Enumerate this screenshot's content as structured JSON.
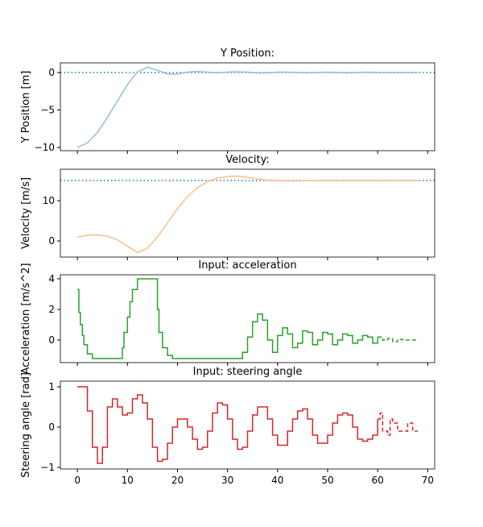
{
  "chart_data": [
    {
      "type": "line",
      "title": "Y Position:",
      "ylabel": "Y Position [m]",
      "xlim": [
        -3.4,
        71.4
      ],
      "ylim": [
        -10.43,
        1.29
      ],
      "xticks": [
        0,
        10,
        20,
        30,
        40,
        50,
        60,
        70
      ],
      "xtick_labels": false,
      "yticks": [
        {
          "value": -10,
          "label": "−10"
        },
        {
          "value": -5,
          "label": "−5"
        },
        0
      ],
      "hline": 0,
      "hline_color": "#1f77b4",
      "step": false,
      "series": [
        {
          "color": "#8fbfdb",
          "x": [
            0,
            2,
            4,
            6,
            8,
            10,
            12,
            14,
            16,
            18,
            20,
            22,
            24,
            26,
            28,
            30,
            32,
            34,
            36,
            38,
            40,
            42,
            44,
            46,
            48,
            50,
            52,
            54,
            56,
            58,
            60,
            62,
            64,
            66,
            68
          ],
          "values": [
            -10,
            -9.4,
            -8,
            -6,
            -3.8,
            -1.6,
            0.1,
            0.7,
            0.3,
            -0.2,
            -0.2,
            0.05,
            0.15,
            0.05,
            -0.05,
            0.05,
            0.1,
            0.05,
            -0.05,
            -0.05,
            0.05,
            0.05,
            0,
            -0.05,
            0,
            0.05,
            0,
            -0.05,
            0,
            0.05,
            0,
            0,
            0,
            0,
            0
          ]
        }
      ]
    },
    {
      "type": "line",
      "title": "Velocity:",
      "ylabel": "Velocity [m/s]",
      "xlim": [
        -3.4,
        71.4
      ],
      "ylim": [
        -4.0,
        17.8
      ],
      "xticks": [
        0,
        10,
        20,
        30,
        40,
        50,
        60,
        70
      ],
      "xtick_labels": false,
      "yticks": [
        0,
        10
      ],
      "hline": 15,
      "hline_color": "#1f77b4",
      "step": false,
      "series": [
        {
          "color": "#f9c18d",
          "x": [
            0,
            2,
            4,
            6,
            8,
            10,
            12,
            14,
            16,
            18,
            20,
            22,
            24,
            26,
            28,
            30,
            32,
            34,
            36,
            38,
            40,
            42,
            44,
            46,
            48,
            50,
            52,
            54,
            56,
            58,
            60,
            62,
            64,
            66,
            68
          ],
          "values": [
            1,
            1.4,
            1.5,
            1.2,
            0.3,
            -1.3,
            -2.9,
            -1.8,
            1,
            4.5,
            8,
            11,
            13.2,
            14.7,
            15.6,
            16,
            16.1,
            15.8,
            15.4,
            15.1,
            15,
            14.9,
            14.9,
            15,
            15,
            15,
            15,
            15,
            15,
            15,
            15,
            15,
            15,
            15,
            15
          ]
        }
      ]
    },
    {
      "type": "line",
      "title": "Input: acceleration",
      "ylabel": "Acceleration [m/s^2]",
      "xlim": [
        -3.4,
        71.4
      ],
      "ylim": [
        -1.47,
        4.26
      ],
      "xticks": [
        0,
        10,
        20,
        30,
        40,
        50,
        60,
        70
      ],
      "xtick_labels": false,
      "yticks": [
        0,
        2,
        4
      ],
      "step": true,
      "series": [
        {
          "color": "#2ca02c",
          "dash": false,
          "x": [
            0,
            0.3,
            0.6,
            1,
            1.3,
            2,
            3,
            9,
            9.3,
            10,
            10.5,
            11,
            12,
            16,
            16.3,
            17,
            18,
            19,
            33,
            34,
            35,
            36,
            37,
            38,
            39,
            40,
            41,
            42,
            43,
            44,
            45,
            46,
            47,
            48,
            49,
            50,
            51,
            52,
            53,
            54,
            55,
            56,
            57,
            58,
            59,
            60
          ],
          "values": [
            3.3,
            1.8,
            1.0,
            0.3,
            -0.3,
            -0.9,
            -1.2,
            -0.5,
            0.5,
            1.5,
            2.5,
            3.3,
            4,
            2,
            0.5,
            -0.5,
            -1.0,
            -1.2,
            -0.8,
            0.2,
            1.2,
            1.7,
            1.3,
            0,
            -0.8,
            0.3,
            0.8,
            0.4,
            -0.5,
            -0.2,
            0.6,
            0.5,
            -0.3,
            0,
            0.5,
            0.4,
            -0.3,
            0,
            0.4,
            0.3,
            -0.2,
            0,
            0.3,
            0.2,
            -0.2,
            0.2
          ]
        },
        {
          "color": "#2ca02c",
          "dash": true,
          "x": [
            60,
            61,
            62,
            63,
            64,
            65,
            68
          ],
          "values": [
            0.2,
            0,
            0.1,
            -0.1,
            0.05,
            0,
            0
          ]
        }
      ]
    },
    {
      "type": "line",
      "title": "Input: steering angle",
      "ylabel": "Steering angle [rad]",
      "xlim": [
        -3.4,
        71.4
      ],
      "ylim": [
        -1.04,
        1.14
      ],
      "xticks": [
        0,
        10,
        20,
        30,
        40,
        50,
        60,
        70
      ],
      "xtick_labels": true,
      "yticks": [
        {
          "value": -1,
          "label": "−1"
        },
        0,
        1
      ],
      "step": true,
      "series": [
        {
          "color": "#d62728",
          "dash": false,
          "x": [
            0,
            1,
            2,
            3,
            4,
            5,
            6,
            7,
            8,
            9,
            10,
            11,
            12,
            13,
            14,
            15,
            16,
            17,
            18,
            19,
            20,
            21,
            22,
            23,
            24,
            25,
            26,
            27,
            28,
            29,
            30,
            31,
            32,
            33,
            34,
            35,
            36,
            37,
            38,
            39,
            40,
            41,
            42,
            43,
            44,
            45,
            46,
            47,
            48,
            49,
            50,
            51,
            52,
            53,
            54,
            55,
            56,
            57,
            58,
            59,
            60
          ],
          "values": [
            1.0,
            1.0,
            0.4,
            -0.5,
            -0.9,
            -0.5,
            0.5,
            0.7,
            0.5,
            0.3,
            0.35,
            0.7,
            0.8,
            0.6,
            0.2,
            -0.5,
            -0.85,
            -0.8,
            -0.4,
            0.0,
            0.2,
            0.2,
            0,
            -0.3,
            -0.55,
            -0.5,
            -0.1,
            0.35,
            0.6,
            0.55,
            0.2,
            -0.3,
            -0.55,
            -0.5,
            -0.1,
            0.3,
            0.5,
            0.5,
            0.2,
            -0.2,
            -0.45,
            -0.45,
            -0.1,
            0.2,
            0.4,
            0.45,
            0.2,
            -0.2,
            -0.4,
            -0.4,
            -0.2,
            0.1,
            0.3,
            0.35,
            0.3,
            0,
            -0.3,
            -0.35,
            -0.3,
            -0.2,
            0.2
          ]
        },
        {
          "color": "#d62728",
          "dash": true,
          "x": [
            60,
            60.5,
            61,
            62,
            62.5,
            63,
            64,
            65,
            66,
            67,
            68
          ],
          "values": [
            0.2,
            0.35,
            -0.1,
            -0.2,
            0.2,
            0.1,
            -0.1,
            -0.1,
            0.1,
            -0.1,
            -0.1
          ]
        }
      ]
    }
  ]
}
